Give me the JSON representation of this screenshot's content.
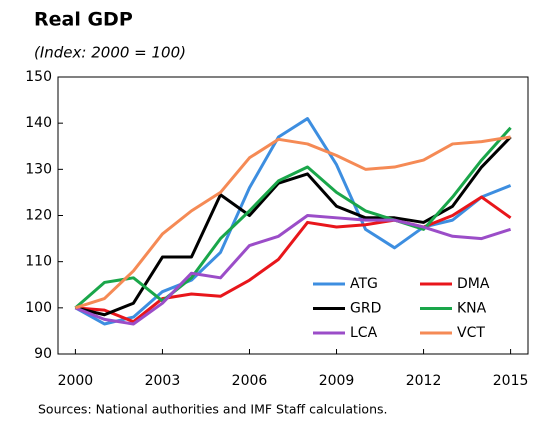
{
  "chart_data": {
    "type": "line",
    "title": "Real GDP",
    "subtitle": "(Index: 2000 = 100)",
    "source": "Sources: National authorities and IMF Staff calculations.",
    "x": [
      2000,
      2001,
      2002,
      2003,
      2004,
      2005,
      2006,
      2007,
      2008,
      2009,
      2010,
      2011,
      2012,
      2013,
      2014,
      2015
    ],
    "xlim": [
      1999.4,
      2015.6
    ],
    "xticks": [
      2000,
      2003,
      2006,
      2009,
      2012,
      2015
    ],
    "ylim": [
      90,
      150
    ],
    "yticks": [
      90,
      100,
      110,
      120,
      130,
      140,
      150
    ],
    "series": [
      {
        "name": "ATG",
        "color": "#3d8ee0",
        "values": [
          100,
          96.5,
          98,
          103.5,
          106,
          112,
          126,
          137,
          141,
          131,
          117,
          113,
          117.5,
          119,
          124,
          126.5
        ]
      },
      {
        "name": "DMA",
        "color": "#e8161b",
        "values": [
          100,
          99.5,
          97,
          102,
          103,
          102.5,
          106,
          110.5,
          118.5,
          117.5,
          118,
          119,
          117.5,
          120,
          124,
          119.5
        ]
      },
      {
        "name": "GRD",
        "color": "#000000",
        "values": [
          100,
          98.5,
          101,
          111,
          111,
          124.5,
          120,
          127,
          129,
          122,
          119.5,
          119.5,
          118.5,
          122,
          130.5,
          137
        ]
      },
      {
        "name": "KNA",
        "color": "#1aa64a",
        "values": [
          100,
          105.5,
          106.5,
          101.5,
          106.5,
          115,
          121,
          127.5,
          130.5,
          125,
          121,
          119,
          117,
          124,
          132,
          139
        ]
      },
      {
        "name": "LCA",
        "color": "#9b4dc8",
        "values": [
          100,
          97.5,
          96.5,
          101,
          107.5,
          106.5,
          113.5,
          115.5,
          120,
          119.5,
          119,
          119,
          117.5,
          115.5,
          115,
          117
        ]
      },
      {
        "name": "VCT",
        "color": "#f58a55",
        "values": [
          100,
          102,
          108,
          116,
          121,
          125,
          132.5,
          136.5,
          135.5,
          133,
          130,
          130.5,
          132,
          135.5,
          136,
          137
        ]
      }
    ]
  }
}
